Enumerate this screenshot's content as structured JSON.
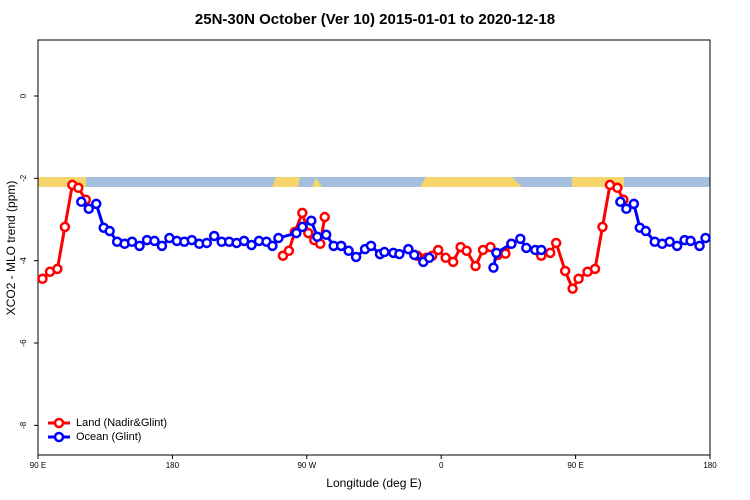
{
  "chart_data": {
    "type": "line",
    "title": "25N-30N October (Ver 10)   2015-01-01 to 2020-12-18",
    "xlabel": "Longitude (deg E)",
    "ylabel": "XCO2 - MLO trend (ppm)",
    "xlim": [
      90,
      540
    ],
    "xticks": [
      {
        "value": 90,
        "label": "90 E"
      },
      180,
      {
        "value": 270,
        "label": "90 W"
      },
      {
        "value": 360,
        "label": "0"
      },
      {
        "value": 450,
        "label": "90 E"
      },
      {
        "value": 540,
        "label": "180"
      }
    ],
    "ylim": [
      -8.72,
      1.36
    ],
    "yticks": [
      -8,
      -6,
      -4,
      -2,
      0
    ],
    "legend": "lower left",
    "series": [
      {
        "name": "Land (Nadir&Glint)",
        "color": "#ff0000",
        "x": [
          93,
          98,
          103,
          108,
          113,
          117,
          122,
          null,
          254,
          258,
          262,
          267,
          271,
          275,
          279,
          282,
          null,
          344,
          350,
          354,
          358,
          363,
          368,
          373,
          377,
          383,
          388,
          393,
          398,
          403,
          407,
          null,
          427,
          433,
          437,
          443,
          448,
          452,
          458,
          463,
          468,
          473,
          478,
          482
        ],
        "values": [
          -4.44,
          -4.27,
          -4.2,
          -3.18,
          -2.16,
          -2.23,
          -2.52,
          null,
          -3.88,
          -3.76,
          -3.3,
          -2.84,
          -3.33,
          -3.5,
          -3.59,
          -2.94,
          null,
          -3.88,
          -3.93,
          -3.88,
          -3.74,
          -3.93,
          -4.03,
          -3.67,
          -3.76,
          -4.13,
          -3.74,
          -3.67,
          -3.86,
          -3.83,
          -3.59,
          null,
          -3.88,
          -3.81,
          -3.57,
          -4.25,
          -4.68,
          -4.44,
          -4.27,
          -4.2,
          -3.18,
          -2.16,
          -2.23,
          -2.52
        ]
      },
      {
        "name": "Ocean (Glint)",
        "color": "#0000ff",
        "x": [
          119,
          124,
          129,
          134,
          138,
          143,
          148,
          153,
          158,
          163,
          168,
          173,
          178,
          183,
          188,
          193,
          198,
          203,
          208,
          213,
          218,
          223,
          228,
          233,
          238,
          243,
          247,
          251,
          263,
          267,
          273,
          277,
          283,
          288,
          293,
          298,
          303,
          309,
          313,
          319,
          322,
          328,
          332,
          338,
          342,
          348,
          352,
          null,
          395,
          397,
          407,
          413,
          417,
          423,
          427,
          null,
          480,
          484,
          489,
          493,
          497,
          503,
          508,
          513,
          518,
          523,
          527,
          533,
          537
        ],
        "values": [
          -2.57,
          -2.74,
          -2.62,
          -3.2,
          -3.28,
          -3.54,
          -3.59,
          -3.54,
          -3.64,
          -3.5,
          -3.52,
          -3.64,
          -3.45,
          -3.52,
          -3.54,
          -3.5,
          -3.59,
          -3.57,
          -3.4,
          -3.54,
          -3.54,
          -3.57,
          -3.52,
          -3.62,
          -3.52,
          -3.54,
          -3.64,
          -3.45,
          -3.33,
          -3.18,
          -3.03,
          -3.42,
          -3.37,
          -3.64,
          -3.64,
          -3.76,
          -3.91,
          -3.72,
          -3.64,
          -3.84,
          -3.79,
          -3.81,
          -3.84,
          -3.72,
          -3.86,
          -4.03,
          -3.93,
          null,
          -4.17,
          -3.81,
          -3.59,
          -3.47,
          -3.69,
          -3.74,
          -3.74,
          null,
          -2.57,
          -2.74,
          -2.62,
          -3.2,
          -3.28,
          -3.54,
          -3.59,
          -3.54,
          -3.64,
          -3.5,
          -3.52,
          -3.64,
          -3.45
        ]
      }
    ]
  }
}
